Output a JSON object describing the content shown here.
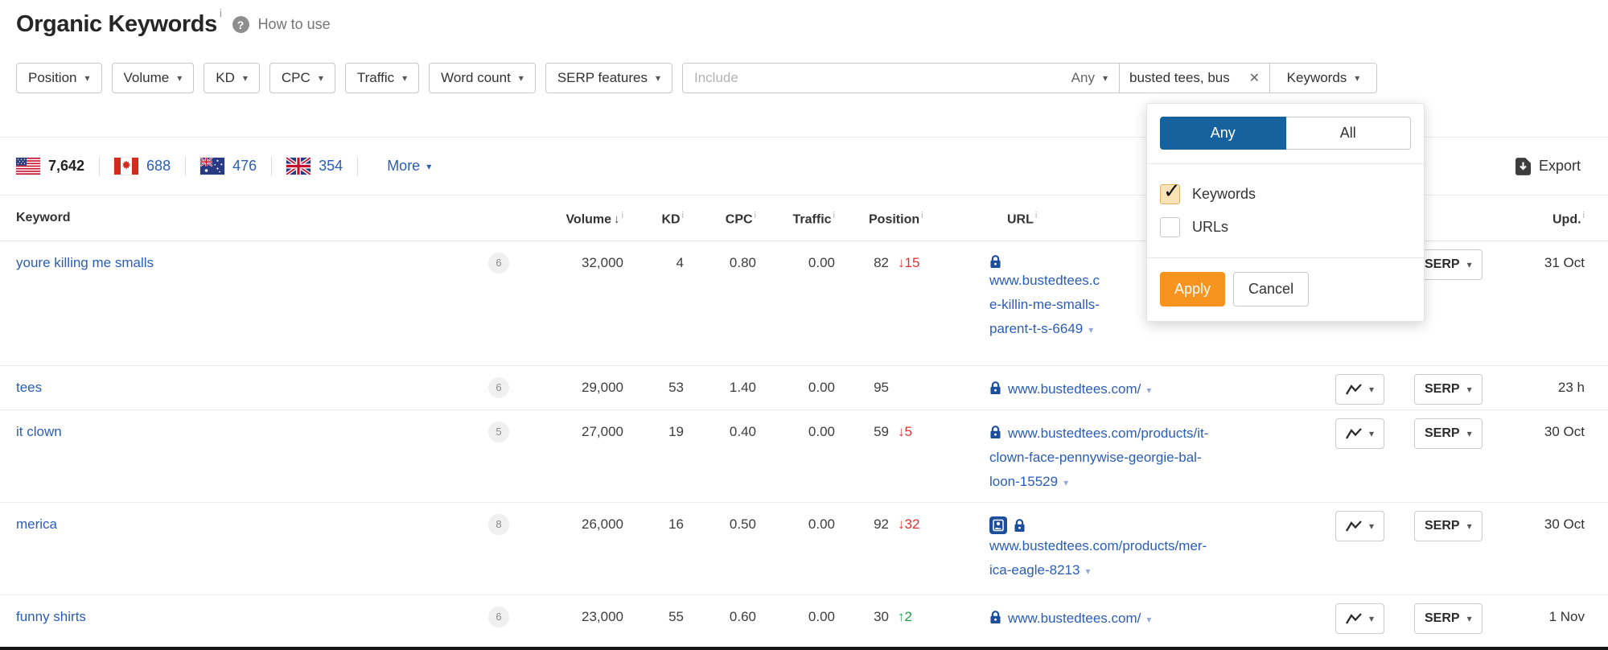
{
  "page": {
    "title": "Organic Keywords",
    "title_sup": "i",
    "help_glyph": "?",
    "how_to_use": "How to use"
  },
  "filters": {
    "buttons": [
      "Position",
      "Volume",
      "KD",
      "CPC",
      "Traffic",
      "Word count",
      "SERP features"
    ],
    "include": {
      "placeholder": "Include",
      "mode": "Any"
    },
    "tag_text": "busted tees, bus",
    "scope_button": "Keywords"
  },
  "popup": {
    "segments": [
      {
        "label": "Any",
        "active": true
      },
      {
        "label": "All",
        "active": false
      }
    ],
    "options": [
      {
        "label": "Keywords",
        "checked": true
      },
      {
        "label": "URLs",
        "checked": false
      }
    ],
    "apply_label": "Apply",
    "cancel_label": "Cancel"
  },
  "stats": {
    "countries": [
      {
        "code": "us",
        "count": "7,642",
        "active": true
      },
      {
        "code": "ca",
        "count": "688",
        "active": false
      },
      {
        "code": "au",
        "count": "476",
        "active": false
      },
      {
        "code": "gb",
        "count": "354",
        "active": false
      }
    ],
    "more_label": "More",
    "export_label": "Export"
  },
  "table": {
    "headers": {
      "keyword": "Keyword",
      "volume": "Volume",
      "kd": "KD",
      "cpc": "CPC",
      "traffic": "Traffic",
      "position": "Position",
      "url": "URL",
      "updated": "Upd."
    },
    "serp_label": "SERP",
    "rows": [
      {
        "keyword": "youre killing me smalls",
        "badge": "6",
        "volume": "32,000",
        "kd": "4",
        "cpc": "0.80",
        "traffic": "0.00",
        "position": "82",
        "change": "15",
        "change_dir": "down",
        "icons_on_own_line": true,
        "has_image_thumb": false,
        "url_lines": [
          "www.bustedtees.c",
          "e-killin-me-smalls-",
          "parent-t-s-6649"
        ],
        "updated": "31 Oct"
      },
      {
        "keyword": "tees",
        "badge": "6",
        "volume": "29,000",
        "kd": "53",
        "cpc": "1.40",
        "traffic": "0.00",
        "position": "95",
        "change": "",
        "change_dir": "",
        "icons_on_own_line": false,
        "has_image_thumb": false,
        "url_lines": [
          "www.bustedtees.com/"
        ],
        "updated": "23 h"
      },
      {
        "keyword": "it clown",
        "badge": "5",
        "volume": "27,000",
        "kd": "19",
        "cpc": "0.40",
        "traffic": "0.00",
        "position": "59",
        "change": "5",
        "change_dir": "down",
        "icons_on_own_line": false,
        "has_image_thumb": false,
        "url_lines": [
          "www.bustedtees.com/products/it-",
          "clown-face-pennywise-georgie-bal-",
          "loon-15529"
        ],
        "updated": "30 Oct"
      },
      {
        "keyword": "merica",
        "badge": "8",
        "volume": "26,000",
        "kd": "16",
        "cpc": "0.50",
        "traffic": "0.00",
        "position": "92",
        "change": "32",
        "change_dir": "down",
        "icons_on_own_line": true,
        "has_image_thumb": true,
        "url_lines": [
          "www.bustedtees.com/products/mer-",
          "ica-eagle-8213"
        ],
        "updated": "30 Oct"
      },
      {
        "keyword": "funny shirts",
        "badge": "6",
        "volume": "23,000",
        "kd": "55",
        "cpc": "0.60",
        "traffic": "0.00",
        "position": "30",
        "change": "2",
        "change_dir": "up",
        "icons_on_own_line": false,
        "has_image_thumb": false,
        "url_lines": [
          "www.bustedtees.com/"
        ],
        "updated": "1 Nov"
      }
    ]
  },
  "colors": {
    "link_blue": "#2a5db8",
    "lock_navy": "#1d4e9b",
    "change_down_red": "#e03131",
    "change_up_green": "#1f9e47",
    "apply_orange": "#f7941f",
    "segment_active_blue": "#15629e",
    "checkbox_checked_bg": "#f9e2b5"
  }
}
